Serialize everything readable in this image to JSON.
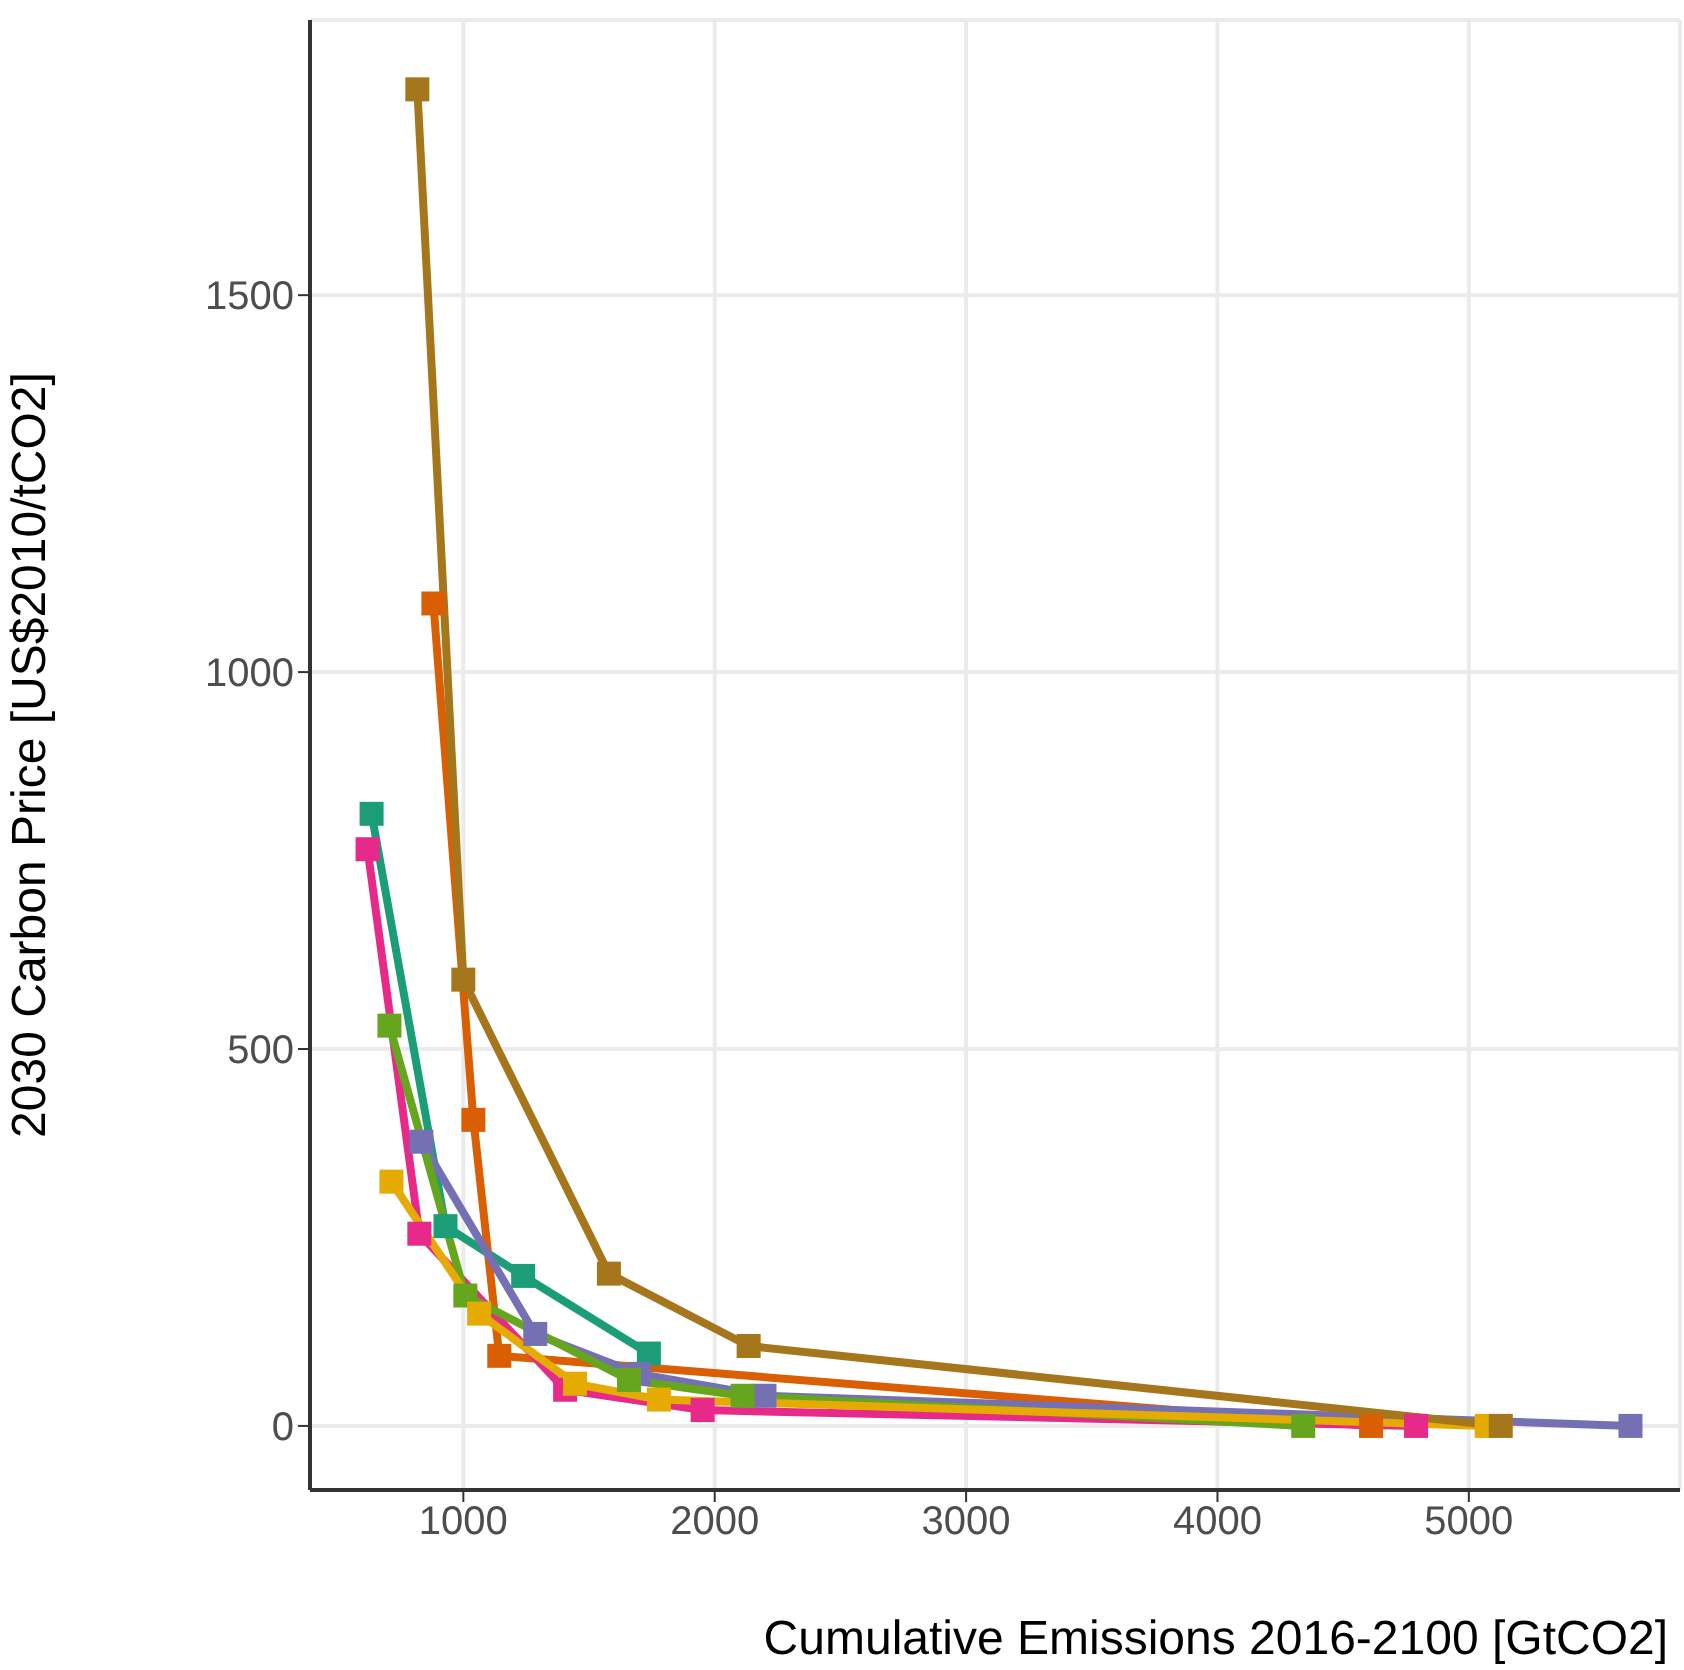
{
  "chart_data": {
    "type": "line",
    "xlabel": "Cumulative Emissions 2016-2100 [GtCO2]",
    "ylabel": "2030 Carbon Price [US$2010/tCO2]",
    "xlim": [
      390,
      5840
    ],
    "ylim": [
      -85,
      1865
    ],
    "xticks": [
      1000,
      2000,
      3000,
      4000,
      5000
    ],
    "yticks": [
      0,
      500,
      1000,
      1500
    ],
    "grid": true,
    "marker": "square",
    "line_style": "solid",
    "series": [
      {
        "color": "#1b9e77",
        "x": [
          635,
          929,
          1238,
          1738
        ],
        "values": [
          812,
          265,
          199,
          96
        ]
      },
      {
        "color": "#d95f02",
        "x": [
          881,
          1040,
          1143,
          4611
        ],
        "values": [
          1091,
          406,
          93,
          0
        ]
      },
      {
        "color": "#7570b3",
        "x": [
          833,
          1286,
          1698,
          2198,
          5643
        ],
        "values": [
          377,
          122,
          69,
          40,
          0
        ]
      },
      {
        "color": "#e7298a",
        "x": [
          619,
          825,
          1405,
          1952,
          4790
        ],
        "values": [
          765,
          255,
          48,
          21,
          0
        ]
      },
      {
        "color": "#66a61e",
        "x": [
          706,
          1008,
          1659,
          2111,
          4341
        ],
        "values": [
          531,
          173,
          61,
          40,
          0
        ]
      },
      {
        "color": "#e6ab02",
        "x": [
          714,
          1063,
          1444,
          1778,
          5071
        ],
        "values": [
          324,
          149,
          56,
          35,
          0
        ]
      },
      {
        "color": "#a6761d",
        "x": [
          817,
          1000,
          1579,
          2135,
          5127
        ],
        "values": [
          1773,
          592,
          202,
          106,
          0
        ]
      }
    ]
  }
}
